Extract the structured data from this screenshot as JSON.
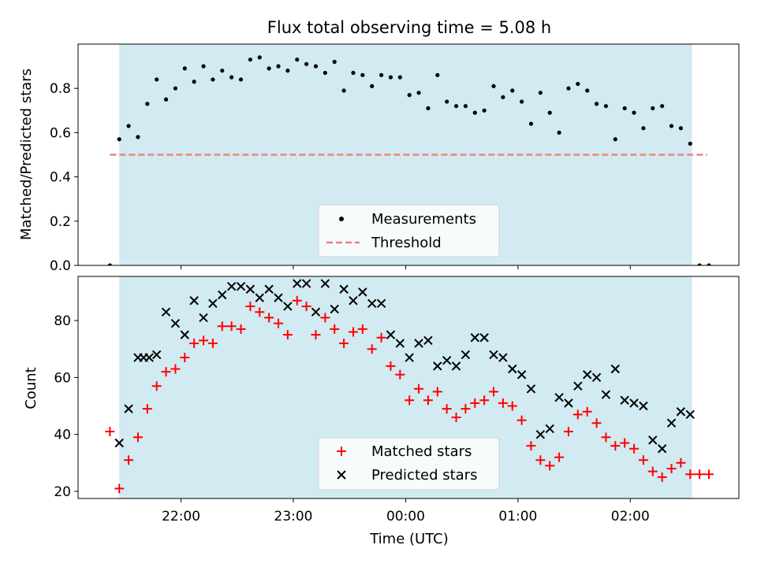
{
  "title": "Flux total observing time = 5.08 h",
  "colors": {
    "observing_window": "#add8e6",
    "measurements": "#000000",
    "threshold": "#f08080",
    "matched": "#ff0000",
    "predicted": "#000000"
  },
  "chart_data": [
    {
      "type": "scatter",
      "ylabel": "Matched/Predicted stars",
      "xlabel": "",
      "xlim": [
        "21:05",
        "02:58"
      ],
      "ylim": [
        0,
        1.0
      ],
      "yticks": [
        0.0,
        0.2,
        0.4,
        0.6,
        0.8
      ],
      "ytick_labels": [
        "0.0",
        "0.2",
        "0.4",
        "0.6",
        "0.8"
      ],
      "shaded_span": {
        "start": "21:27",
        "end": "02:33"
      },
      "legend": {
        "placement": "lower-center",
        "entries": [
          "Measurements",
          "Threshold"
        ]
      },
      "threshold": {
        "name": "Threshold",
        "y": 0.5,
        "x_start": "21:22",
        "x_end": "02:41"
      },
      "series": [
        {
          "name": "Measurements",
          "marker": "dot",
          "points": [
            [
              "21:22",
              0.0
            ],
            [
              "21:27",
              0.57
            ],
            [
              "21:32",
              0.63
            ],
            [
              "21:37",
              0.58
            ],
            [
              "21:42",
              0.73
            ],
            [
              "21:47",
              0.84
            ],
            [
              "21:52",
              0.75
            ],
            [
              "21:57",
              0.8
            ],
            [
              "22:02",
              0.89
            ],
            [
              "22:07",
              0.83
            ],
            [
              "22:12",
              0.9
            ],
            [
              "22:17",
              0.84
            ],
            [
              "22:22",
              0.88
            ],
            [
              "22:27",
              0.85
            ],
            [
              "22:32",
              0.84
            ],
            [
              "22:37",
              0.93
            ],
            [
              "22:42",
              0.94
            ],
            [
              "22:47",
              0.89
            ],
            [
              "22:52",
              0.9
            ],
            [
              "22:57",
              0.88
            ],
            [
              "23:02",
              0.93
            ],
            [
              "23:07",
              0.91
            ],
            [
              "23:12",
              0.9
            ],
            [
              "23:17",
              0.87
            ],
            [
              "23:22",
              0.92
            ],
            [
              "23:27",
              0.79
            ],
            [
              "23:32",
              0.87
            ],
            [
              "23:37",
              0.86
            ],
            [
              "23:42",
              0.81
            ],
            [
              "23:47",
              0.86
            ],
            [
              "23:52",
              0.85
            ],
            [
              "23:57",
              0.85
            ],
            [
              "00:02",
              0.77
            ],
            [
              "00:07",
              0.78
            ],
            [
              "00:12",
              0.71
            ],
            [
              "00:17",
              0.86
            ],
            [
              "00:22",
              0.74
            ],
            [
              "00:27",
              0.72
            ],
            [
              "00:32",
              0.72
            ],
            [
              "00:37",
              0.69
            ],
            [
              "00:42",
              0.7
            ],
            [
              "00:47",
              0.81
            ],
            [
              "00:52",
              0.76
            ],
            [
              "00:57",
              0.79
            ],
            [
              "01:02",
              0.74
            ],
            [
              "01:07",
              0.64
            ],
            [
              "01:12",
              0.78
            ],
            [
              "01:17",
              0.69
            ],
            [
              "01:22",
              0.6
            ],
            [
              "01:27",
              0.8
            ],
            [
              "01:32",
              0.82
            ],
            [
              "01:37",
              0.79
            ],
            [
              "01:42",
              0.73
            ],
            [
              "01:47",
              0.72
            ],
            [
              "01:52",
              0.57
            ],
            [
              "01:57",
              0.71
            ],
            [
              "02:02",
              0.69
            ],
            [
              "02:07",
              0.62
            ],
            [
              "02:12",
              0.71
            ],
            [
              "02:17",
              0.72
            ],
            [
              "02:22",
              0.63
            ],
            [
              "02:27",
              0.62
            ],
            [
              "02:32",
              0.55
            ],
            [
              "02:37",
              0.0
            ],
            [
              "02:42",
              0.0
            ]
          ]
        }
      ]
    },
    {
      "type": "scatter",
      "ylabel": "Count",
      "xlabel": "Time (UTC)",
      "xlim": [
        "21:05",
        "02:58"
      ],
      "ylim": [
        17.5,
        95.5
      ],
      "yticks": [
        20,
        40,
        60,
        80
      ],
      "ytick_labels": [
        "20",
        "40",
        "60",
        "80"
      ],
      "xticks": [
        "22:00",
        "23:00",
        "00:00",
        "01:00",
        "02:00"
      ],
      "xtick_labels": [
        "22:00",
        "23:00",
        "00:00",
        "01:00",
        "02:00"
      ],
      "shaded_span": {
        "start": "21:27",
        "end": "02:33"
      },
      "legend": {
        "placement": "lower-center",
        "entries": [
          "Matched stars",
          "Predicted stars"
        ]
      },
      "series": [
        {
          "name": "Matched stars",
          "marker": "plus",
          "points": [
            [
              "21:22",
              41
            ],
            [
              "21:27",
              21
            ],
            [
              "21:32",
              31
            ],
            [
              "21:37",
              39
            ],
            [
              "21:42",
              49
            ],
            [
              "21:47",
              57
            ],
            [
              "21:52",
              62
            ],
            [
              "21:57",
              63
            ],
            [
              "22:02",
              67
            ],
            [
              "22:07",
              72
            ],
            [
              "22:12",
              73
            ],
            [
              "22:17",
              72
            ],
            [
              "22:22",
              78
            ],
            [
              "22:27",
              78
            ],
            [
              "22:32",
              77
            ],
            [
              "22:37",
              85
            ],
            [
              "22:42",
              83
            ],
            [
              "22:47",
              81
            ],
            [
              "22:52",
              79
            ],
            [
              "22:57",
              75
            ],
            [
              "23:02",
              87
            ],
            [
              "23:07",
              85
            ],
            [
              "23:12",
              75
            ],
            [
              "23:17",
              81
            ],
            [
              "23:22",
              77
            ],
            [
              "23:27",
              72
            ],
            [
              "23:32",
              76
            ],
            [
              "23:37",
              77
            ],
            [
              "23:42",
              70
            ],
            [
              "23:47",
              74
            ],
            [
              "23:52",
              64
            ],
            [
              "23:57",
              61
            ],
            [
              "00:02",
              52
            ],
            [
              "00:07",
              56
            ],
            [
              "00:12",
              52
            ],
            [
              "00:17",
              55
            ],
            [
              "00:22",
              49
            ],
            [
              "00:27",
              46
            ],
            [
              "00:32",
              49
            ],
            [
              "00:37",
              51
            ],
            [
              "00:42",
              52
            ],
            [
              "00:47",
              55
            ],
            [
              "00:52",
              51
            ],
            [
              "00:57",
              50
            ],
            [
              "01:02",
              45
            ],
            [
              "01:07",
              36
            ],
            [
              "01:12",
              31
            ],
            [
              "01:17",
              29
            ],
            [
              "01:22",
              32
            ],
            [
              "01:27",
              41
            ],
            [
              "01:32",
              47
            ],
            [
              "01:37",
              48
            ],
            [
              "01:42",
              44
            ],
            [
              "01:47",
              39
            ],
            [
              "01:52",
              36
            ],
            [
              "01:57",
              37
            ],
            [
              "02:02",
              35
            ],
            [
              "02:07",
              31
            ],
            [
              "02:12",
              27
            ],
            [
              "02:17",
              25
            ],
            [
              "02:22",
              28
            ],
            [
              "02:27",
              30
            ],
            [
              "02:32",
              26
            ],
            [
              "02:37",
              26
            ],
            [
              "02:42",
              26
            ]
          ]
        },
        {
          "name": "Predicted stars",
          "marker": "x",
          "points": [
            [
              "21:27",
              37
            ],
            [
              "21:32",
              49
            ],
            [
              "21:37",
              67
            ],
            [
              "21:40",
              67
            ],
            [
              "21:43",
              67
            ],
            [
              "21:47",
              68
            ],
            [
              "21:52",
              83
            ],
            [
              "21:57",
              79
            ],
            [
              "22:02",
              75
            ],
            [
              "22:07",
              87
            ],
            [
              "22:12",
              81
            ],
            [
              "22:17",
              86
            ],
            [
              "22:22",
              89
            ],
            [
              "22:27",
              92
            ],
            [
              "22:32",
              92
            ],
            [
              "22:37",
              91
            ],
            [
              "22:42",
              88
            ],
            [
              "22:47",
              91
            ],
            [
              "22:52",
              88
            ],
            [
              "22:57",
              85
            ],
            [
              "23:02",
              93
            ],
            [
              "23:07",
              93
            ],
            [
              "23:12",
              83
            ],
            [
              "23:17",
              93
            ],
            [
              "23:22",
              84
            ],
            [
              "23:27",
              91
            ],
            [
              "23:32",
              87
            ],
            [
              "23:37",
              90
            ],
            [
              "23:42",
              86
            ],
            [
              "23:47",
              86
            ],
            [
              "23:52",
              75
            ],
            [
              "23:57",
              72
            ],
            [
              "00:02",
              67
            ],
            [
              "00:07",
              72
            ],
            [
              "00:12",
              73
            ],
            [
              "00:17",
              64
            ],
            [
              "00:22",
              66
            ],
            [
              "00:27",
              64
            ],
            [
              "00:32",
              68
            ],
            [
              "00:37",
              74
            ],
            [
              "00:42",
              74
            ],
            [
              "00:47",
              68
            ],
            [
              "00:52",
              67
            ],
            [
              "00:57",
              63
            ],
            [
              "01:02",
              61
            ],
            [
              "01:07",
              56
            ],
            [
              "01:12",
              40
            ],
            [
              "01:17",
              42
            ],
            [
              "01:22",
              53
            ],
            [
              "01:27",
              51
            ],
            [
              "01:32",
              57
            ],
            [
              "01:37",
              61
            ],
            [
              "01:42",
              60
            ],
            [
              "01:47",
              54
            ],
            [
              "01:52",
              63
            ],
            [
              "01:57",
              52
            ],
            [
              "02:02",
              51
            ],
            [
              "02:07",
              50
            ],
            [
              "02:12",
              38
            ],
            [
              "02:17",
              35
            ],
            [
              "02:22",
              44
            ],
            [
              "02:27",
              48
            ],
            [
              "02:32",
              47
            ]
          ]
        }
      ]
    }
  ]
}
